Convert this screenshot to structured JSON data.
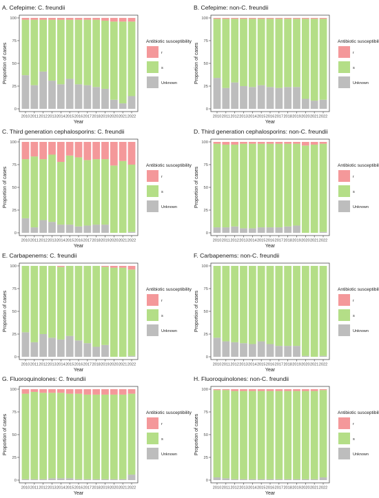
{
  "legend_title": "Antibiotic susceptibility",
  "legend_items": [
    {
      "label": "r",
      "color": "#F4989A"
    },
    {
      "label": "s",
      "color": "#B4DE87"
    },
    {
      "label": "Unknown",
      "color": "#BDBDBD"
    }
  ],
  "xlabel": "Year",
  "ylabel": "Proportion of cases",
  "chart_data": [
    {
      "type": "bar",
      "stacked": true,
      "title": "A. Cefepime: C. freundii",
      "xlabel": "Year",
      "ylabel": "Proportion of cases",
      "ylim": [
        0,
        100
      ],
      "y_ticks": [
        0,
        25,
        50,
        75,
        100
      ],
      "categories": [
        "2010",
        "2011",
        "2012",
        "2013",
        "2014",
        "2015",
        "2016",
        "2017",
        "2018",
        "2019",
        "2020",
        "2021",
        "2022"
      ],
      "series": [
        {
          "name": "Unknown",
          "color": "#BDBDBD",
          "values": [
            37,
            26,
            41,
            31,
            27,
            33,
            27,
            26,
            24,
            22,
            10,
            6,
            14
          ]
        },
        {
          "name": "s",
          "color": "#B4DE87",
          "values": [
            61,
            72,
            57,
            67,
            71,
            65,
            71,
            72,
            74,
            75,
            86,
            90,
            82
          ]
        },
        {
          "name": "r",
          "color": "#F4989A",
          "values": [
            2,
            2,
            2,
            2,
            2,
            2,
            2,
            2,
            2,
            3,
            4,
            4,
            4
          ]
        }
      ]
    },
    {
      "type": "bar",
      "stacked": true,
      "title": "B. Cefepime: non-C. freundii",
      "xlabel": "Year",
      "ylabel": "Proportion of cases",
      "ylim": [
        0,
        100
      ],
      "y_ticks": [
        0,
        25,
        50,
        75,
        100
      ],
      "categories": [
        "2010",
        "2011",
        "2012",
        "2013",
        "2014",
        "2015",
        "2016",
        "2017",
        "2018",
        "2019",
        "2020",
        "2021",
        "2022"
      ],
      "series": [
        {
          "name": "Unknown",
          "color": "#BDBDBD",
          "values": [
            34,
            23,
            29,
            25,
            24,
            26,
            24,
            23,
            24,
            24,
            11,
            9,
            10
          ]
        },
        {
          "name": "s",
          "color": "#B4DE87",
          "values": [
            65,
            76,
            70,
            74,
            75,
            73,
            75,
            76,
            75,
            75,
            88,
            90,
            89
          ]
        },
        {
          "name": "r",
          "color": "#F4989A",
          "values": [
            1,
            1,
            1,
            1,
            1,
            1,
            1,
            1,
            1,
            1,
            1,
            1,
            1
          ]
        }
      ]
    },
    {
      "type": "bar",
      "stacked": true,
      "title": "C. Third generation cephalosporins: C. freundii",
      "xlabel": "Year",
      "ylabel": "Proportion of cases",
      "ylim": [
        0,
        100
      ],
      "y_ticks": [
        0,
        25,
        50,
        75,
        100
      ],
      "categories": [
        "2010",
        "2011",
        "2012",
        "2013",
        "2014",
        "2015",
        "2016",
        "2017",
        "2018",
        "2019",
        "2020",
        "2021",
        "2022"
      ],
      "series": [
        {
          "name": "Unknown",
          "color": "#BDBDBD",
          "values": [
            16,
            6,
            14,
            12,
            9,
            9,
            7,
            8,
            9,
            9,
            0,
            0,
            1
          ]
        },
        {
          "name": "s",
          "color": "#B4DE87",
          "values": [
            65,
            78,
            67,
            74,
            69,
            76,
            76,
            72,
            72,
            72,
            74,
            79,
            74
          ]
        },
        {
          "name": "r",
          "color": "#F4989A",
          "values": [
            19,
            16,
            19,
            14,
            22,
            15,
            17,
            20,
            19,
            19,
            26,
            21,
            25
          ]
        }
      ]
    },
    {
      "type": "bar",
      "stacked": true,
      "title": "D. Third generation cephalosporins: non-C. freundii",
      "xlabel": "Year",
      "ylabel": "Proportion of cases",
      "ylim": [
        0,
        100
      ],
      "y_ticks": [
        0,
        25,
        50,
        75,
        100
      ],
      "categories": [
        "2010",
        "2011",
        "2012",
        "2013",
        "2014",
        "2015",
        "2016",
        "2017",
        "2018",
        "2019",
        "2020",
        "2021",
        "2022"
      ],
      "series": [
        {
          "name": "Unknown",
          "color": "#BDBDBD",
          "values": [
            6,
            6,
            7,
            5,
            5,
            6,
            6,
            6,
            7,
            8,
            0,
            0,
            1
          ]
        },
        {
          "name": "s",
          "color": "#B4DE87",
          "values": [
            92,
            91,
            90,
            93,
            93,
            92,
            92,
            92,
            91,
            90,
            96,
            97,
            97
          ]
        },
        {
          "name": "r",
          "color": "#F4989A",
          "values": [
            2,
            3,
            3,
            2,
            2,
            2,
            2,
            2,
            2,
            2,
            4,
            3,
            2
          ]
        }
      ]
    },
    {
      "type": "bar",
      "stacked": true,
      "title": "E. Carbapenems: C. freundii",
      "xlabel": "Year",
      "ylabel": "Proportion of cases",
      "ylim": [
        0,
        100
      ],
      "y_ticks": [
        0,
        25,
        50,
        75,
        100
      ],
      "categories": [
        "2010",
        "2011",
        "2012",
        "2013",
        "2014",
        "2015",
        "2016",
        "2017",
        "2018",
        "2019",
        "2020",
        "2021",
        "2022"
      ],
      "series": [
        {
          "name": "Unknown",
          "color": "#BDBDBD",
          "values": [
            27,
            16,
            25,
            21,
            19,
            23,
            18,
            15,
            11,
            13,
            0,
            0,
            1
          ]
        },
        {
          "name": "s",
          "color": "#B4DE87",
          "values": [
            73,
            84,
            75,
            79,
            80,
            77,
            82,
            85,
            89,
            86,
            98,
            98,
            95
          ]
        },
        {
          "name": "r",
          "color": "#F4989A",
          "values": [
            0,
            0,
            0,
            0,
            1,
            0,
            0,
            0,
            0,
            1,
            2,
            2,
            4
          ]
        }
      ]
    },
    {
      "type": "bar",
      "stacked": true,
      "title": "F. Carbapenems: non-C. freundii",
      "xlabel": "Year",
      "ylabel": "Proportion of cases",
      "ylim": [
        0,
        100
      ],
      "y_ticks": [
        0,
        25,
        50,
        75,
        100
      ],
      "categories": [
        "2010",
        "2011",
        "2012",
        "2013",
        "2014",
        "2015",
        "2016",
        "2017",
        "2018",
        "2019",
        "2020",
        "2021",
        "2022"
      ],
      "series": [
        {
          "name": "Unknown",
          "color": "#BDBDBD",
          "values": [
            21,
            17,
            16,
            15,
            14,
            17,
            14,
            12,
            12,
            12,
            1,
            0,
            1
          ]
        },
        {
          "name": "s",
          "color": "#B4DE87",
          "values": [
            79,
            83,
            84,
            85,
            86,
            83,
            86,
            88,
            88,
            88,
            99,
            100,
            99
          ]
        },
        {
          "name": "r",
          "color": "#F4989A",
          "values": [
            0,
            0,
            0,
            0,
            0,
            0,
            0,
            0,
            0,
            0,
            0,
            0,
            0
          ]
        }
      ]
    },
    {
      "type": "bar",
      "stacked": true,
      "title": "G. Fluoroquinolones: C. freundii",
      "xlabel": "Year",
      "ylabel": "Proportion of cases",
      "ylim": [
        0,
        100
      ],
      "y_ticks": [
        0,
        25,
        50,
        75,
        100
      ],
      "categories": [
        "2010",
        "2011",
        "2012",
        "2013",
        "2014",
        "2015",
        "2016",
        "2017",
        "2018",
        "2019",
        "2020",
        "2021",
        "2022"
      ],
      "series": [
        {
          "name": "Unknown",
          "color": "#BDBDBD",
          "values": [
            1,
            1,
            1,
            2,
            2,
            2,
            1,
            1,
            1,
            1,
            1,
            1,
            6
          ]
        },
        {
          "name": "s",
          "color": "#B4DE87",
          "values": [
            94,
            96,
            95,
            94,
            94,
            93,
            94,
            93,
            93,
            93,
            93,
            93,
            89
          ]
        },
        {
          "name": "r",
          "color": "#F4989A",
          "values": [
            5,
            3,
            4,
            4,
            4,
            5,
            5,
            6,
            6,
            6,
            6,
            6,
            5
          ]
        }
      ]
    },
    {
      "type": "bar",
      "stacked": true,
      "title": "H. Fluoroquinolones: non-C. freundii",
      "xlabel": "Year",
      "ylabel": "Proportion of cases",
      "ylim": [
        0,
        100
      ],
      "y_ticks": [
        0,
        25,
        50,
        75,
        100
      ],
      "categories": [
        "2010",
        "2011",
        "2012",
        "2013",
        "2014",
        "2015",
        "2016",
        "2017",
        "2018",
        "2019",
        "2020",
        "2021",
        "2022"
      ],
      "series": [
        {
          "name": "Unknown",
          "color": "#BDBDBD",
          "values": [
            3,
            2,
            1,
            1,
            1,
            1,
            1,
            1,
            1,
            1,
            1,
            1,
            3
          ]
        },
        {
          "name": "s",
          "color": "#B4DE87",
          "values": [
            96,
            97,
            97,
            97,
            97,
            97,
            97,
            97,
            97,
            97,
            97,
            97,
            96
          ]
        },
        {
          "name": "r",
          "color": "#F4989A",
          "values": [
            1,
            1,
            2,
            2,
            2,
            2,
            2,
            2,
            2,
            2,
            2,
            2,
            1
          ]
        }
      ]
    }
  ]
}
